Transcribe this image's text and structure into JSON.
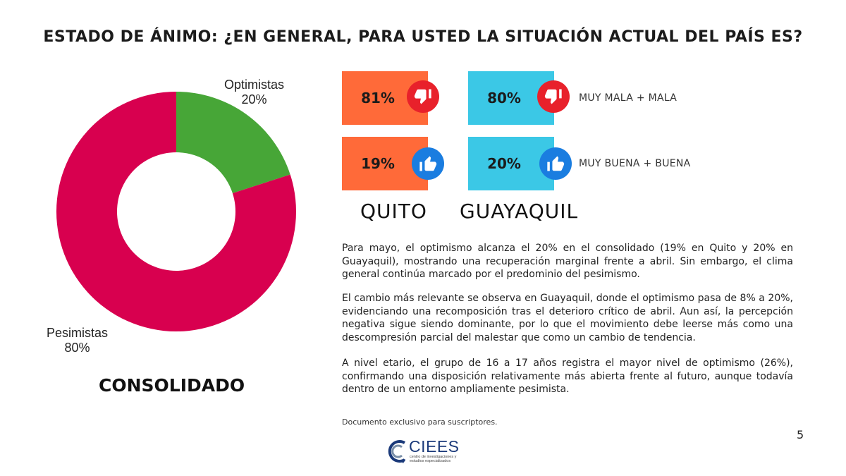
{
  "title": "ESTADO DE ÁNIMO: ¿EN GENERAL, PARA USTED LA SITUACIÓN ACTUAL DEL PAÍS ES?",
  "chart_data": [
    {
      "type": "pie",
      "variant": "donut",
      "title": "CONSOLIDADO",
      "categories": [
        "Optimistas",
        "Pesimistas"
      ],
      "values": [
        20,
        80
      ],
      "value_labels": [
        "20%",
        "80%"
      ],
      "colors": [
        "#47a637",
        "#d8004f"
      ]
    },
    {
      "type": "table",
      "columns": [
        "QUITO",
        "GUAYAQUIL"
      ],
      "rows": [
        {
          "category": "MUY MALA + MALA",
          "values": [
            81,
            80
          ],
          "labels": [
            "81%",
            "80%"
          ],
          "icon": "thumbs-down-icon"
        },
        {
          "category": "MUY BUENA + BUENA",
          "values": [
            19,
            20
          ],
          "labels": [
            "19%",
            "20%"
          ],
          "icon": "thumbs-up-icon"
        }
      ]
    }
  ],
  "colors": {
    "quito_box": "#ff6a39",
    "guayaquil_box": "#3bc8e6",
    "thumbs_down": "#e8212b",
    "thumbs_up": "#1a7de0"
  },
  "paragraphs": [
    "Para mayo, el optimismo alcanza el 20% en el consolidado (19% en Quito y 20% en Guayaquil), mostrando una recuperación marginal frente a abril. Sin embargo, el clima general continúa marcado por el predominio del pesimismo.",
    "El cambio más relevante se observa en Guayaquil, donde el optimismo pasa de 8% a 20%, evidenciando una recomposición tras el deterioro crítico de abril. Aun así, la percepción negativa sigue siendo dominante, por lo que el movimiento debe leerse más como una descompresión parcial del malestar que como un cambio de tendencia.",
    "A nivel etario, el grupo de 16 a 17 años registra el mayor nivel de optimismo (26%), confirmando una disposición relativamente más abierta frente al futuro, aunque todavía dentro de un entorno ampliamente pesimista."
  ],
  "footnote": "Documento exclusivo para suscriptores.",
  "page_number": "5",
  "logo": {
    "name": "CIEES",
    "subtitle": "centro de investigaciones y estudios especializados"
  }
}
